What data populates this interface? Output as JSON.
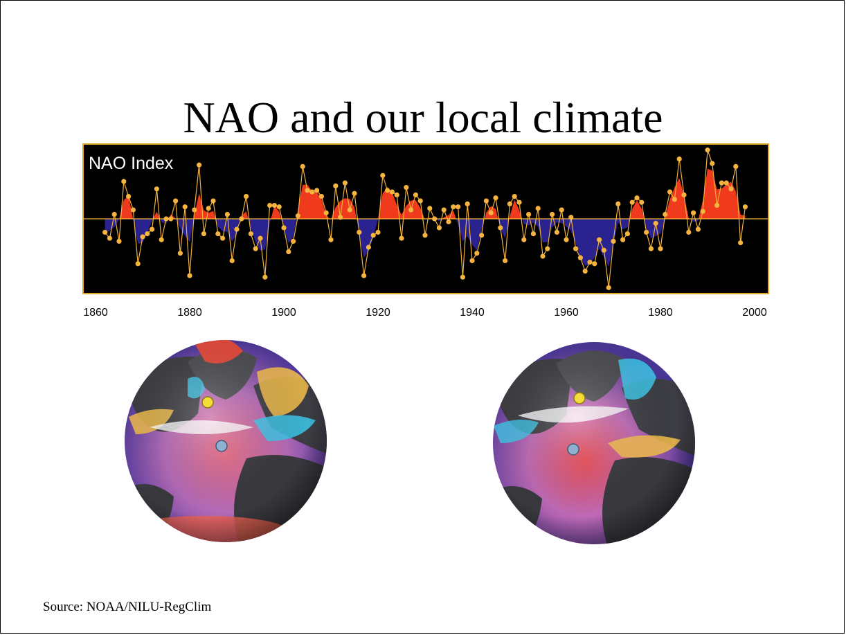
{
  "slide": {
    "title": "NAO and our local climate",
    "source": "Source: NOAA/NILU-RegClim"
  },
  "colors": {
    "background": "#000000",
    "frame": "#e5a624",
    "positive_fill": "#f03a1e",
    "negative_fill": "#2a238f",
    "line": "#f3b23a",
    "marker": "#f5b33f"
  },
  "chart_data": {
    "type": "area",
    "title": "NAO Index",
    "xlabel": "",
    "ylabel": "",
    "xlim": [
      1860,
      2000
    ],
    "ylim": [
      -5,
      5
    ],
    "x_ticks": [
      1860,
      1880,
      1900,
      1920,
      1940,
      1960,
      1980,
      2000
    ],
    "grid": false,
    "series": [
      {
        "values": [
          [
            1862,
            -0.9
          ],
          [
            1863,
            -1.3
          ],
          [
            1864,
            0.3
          ],
          [
            1865,
            -1.5
          ],
          [
            1866,
            2.5
          ],
          [
            1867,
            1.5
          ],
          [
            1868,
            0.6
          ],
          [
            1869,
            -3.0
          ],
          [
            1870,
            -1.2
          ],
          [
            1871,
            -1.0
          ],
          [
            1872,
            -0.7
          ],
          [
            1873,
            2.0
          ],
          [
            1874,
            -1.4
          ],
          [
            1875,
            0.0
          ],
          [
            1876,
            0.0
          ],
          [
            1877,
            1.2
          ],
          [
            1878,
            -2.3
          ],
          [
            1879,
            0.8
          ],
          [
            1880,
            -3.8
          ],
          [
            1881,
            0.6
          ],
          [
            1882,
            3.6
          ],
          [
            1883,
            -1.0
          ],
          [
            1884,
            0.7
          ],
          [
            1885,
            1.2
          ],
          [
            1886,
            -1.0
          ],
          [
            1887,
            -1.3
          ],
          [
            1888,
            0.3
          ],
          [
            1889,
            -2.8
          ],
          [
            1890,
            -0.7
          ],
          [
            1891,
            0.0
          ],
          [
            1892,
            1.5
          ],
          [
            1893,
            -1.0
          ],
          [
            1894,
            -2.0
          ],
          [
            1895,
            -1.3
          ],
          [
            1896,
            -3.9
          ],
          [
            1897,
            0.9
          ],
          [
            1898,
            0.9
          ],
          [
            1899,
            0.8
          ],
          [
            1900,
            -0.6
          ],
          [
            1901,
            -2.2
          ],
          [
            1902,
            -1.5
          ],
          [
            1903,
            0.2
          ],
          [
            1904,
            3.5
          ],
          [
            1905,
            1.9
          ],
          [
            1906,
            1.8
          ],
          [
            1907,
            1.9
          ],
          [
            1908,
            1.5
          ],
          [
            1909,
            0.4
          ],
          [
            1910,
            -1.4
          ],
          [
            1911,
            2.2
          ],
          [
            1912,
            0.1
          ],
          [
            1913,
            2.4
          ],
          [
            1914,
            0.6
          ],
          [
            1915,
            1.7
          ],
          [
            1916,
            -0.9
          ],
          [
            1917,
            -3.8
          ],
          [
            1918,
            -1.9
          ],
          [
            1919,
            -1.1
          ],
          [
            1920,
            -0.9
          ],
          [
            1921,
            2.9
          ],
          [
            1922,
            1.9
          ],
          [
            1923,
            1.8
          ],
          [
            1924,
            1.6
          ],
          [
            1925,
            -1.3
          ],
          [
            1926,
            2.1
          ],
          [
            1927,
            0.6
          ],
          [
            1928,
            1.6
          ],
          [
            1929,
            1.2
          ],
          [
            1930,
            -1.1
          ],
          [
            1931,
            0.7
          ],
          [
            1932,
            0.0
          ],
          [
            1933,
            -0.6
          ],
          [
            1934,
            0.6
          ],
          [
            1935,
            -0.2
          ],
          [
            1936,
            0.8
          ],
          [
            1937,
            0.8
          ],
          [
            1938,
            -3.9
          ],
          [
            1939,
            1.0
          ],
          [
            1940,
            -2.8
          ],
          [
            1941,
            -2.3
          ],
          [
            1942,
            -1.1
          ],
          [
            1943,
            1.2
          ],
          [
            1944,
            0.4
          ],
          [
            1945,
            1.4
          ],
          [
            1946,
            -0.6
          ],
          [
            1947,
            -2.8
          ],
          [
            1948,
            1.0
          ],
          [
            1949,
            1.5
          ],
          [
            1950,
            1.1
          ],
          [
            1951,
            -1.4
          ],
          [
            1952,
            0.3
          ],
          [
            1953,
            -1.0
          ],
          [
            1954,
            0.7
          ],
          [
            1955,
            -2.5
          ],
          [
            1956,
            -2.0
          ],
          [
            1957,
            0.3
          ],
          [
            1958,
            -0.9
          ],
          [
            1959,
            0.6
          ],
          [
            1960,
            -1.4
          ],
          [
            1961,
            0.1
          ],
          [
            1962,
            -2.0
          ],
          [
            1963,
            -2.6
          ],
          [
            1964,
            -3.5
          ],
          [
            1965,
            -2.9
          ],
          [
            1966,
            -3.0
          ],
          [
            1967,
            -1.4
          ],
          [
            1968,
            -2.1
          ],
          [
            1969,
            -4.6
          ],
          [
            1970,
            -1.5
          ],
          [
            1971,
            1.0
          ],
          [
            1972,
            -1.4
          ],
          [
            1973,
            -1.0
          ],
          [
            1974,
            1.1
          ],
          [
            1975,
            1.4
          ],
          [
            1976,
            1.1
          ],
          [
            1977,
            -0.9
          ],
          [
            1978,
            -2.0
          ],
          [
            1979,
            -0.3
          ],
          [
            1980,
            -2.0
          ],
          [
            1981,
            0.3
          ],
          [
            1982,
            1.8
          ],
          [
            1983,
            1.3
          ],
          [
            1984,
            4.0
          ],
          [
            1985,
            1.6
          ],
          [
            1986,
            -0.9
          ],
          [
            1987,
            0.4
          ],
          [
            1988,
            -0.7
          ],
          [
            1989,
            0.5
          ],
          [
            1990,
            4.6
          ],
          [
            1991,
            3.7
          ],
          [
            1992,
            0.9
          ],
          [
            1993,
            2.4
          ],
          [
            1994,
            2.4
          ],
          [
            1995,
            2.0
          ],
          [
            1996,
            3.5
          ],
          [
            1997,
            -1.6
          ],
          [
            1998,
            0.8
          ]
        ]
      }
    ]
  }
}
